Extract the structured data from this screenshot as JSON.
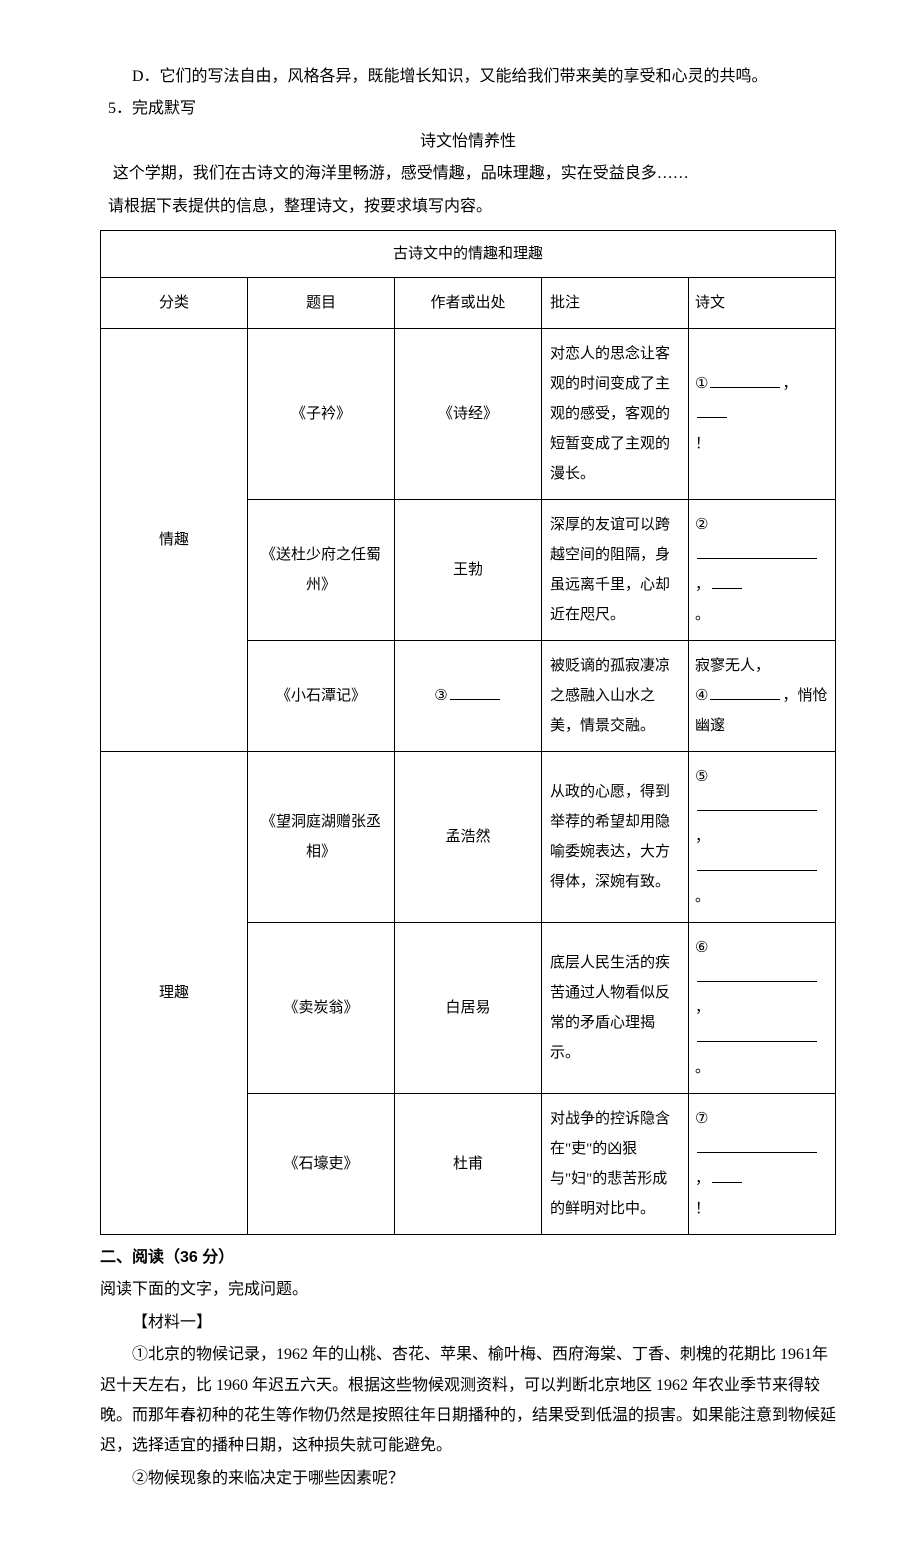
{
  "option_d": "D．它们的写法自由，风格各异，既能增长知识，又能给我们带来美的享受和心灵的共鸣。",
  "q5": "5．完成默写",
  "poem_title": "诗文怡情养性",
  "intro1": "这个学期，我们在古诗文的海洋里畅游，感受情趣，品味理趣，实在受益良多……",
  "intro2": "请根据下表提供的信息，整理诗文，按要求填写内容。",
  "table": {
    "caption": "古诗文中的情趣和理趣",
    "header": {
      "cat": "分类",
      "title": "题目",
      "author": "作者或出处",
      "note": "批注",
      "poem": "诗文"
    },
    "cat1": "情趣",
    "cat2": "理趣",
    "rows": [
      {
        "title": "《子衿》",
        "author": "《诗经》",
        "note": "对恋人的思念让客观的时间变成了主观的感受，客观的短暂变成了主观的漫长。",
        "num": "①",
        "tail": "！"
      },
      {
        "title": "《送杜少府之任蜀州》",
        "author": "王勃",
        "note": "深厚的友谊可以跨越空间的阻隔，身虽远离千里，心却近在咫尺。",
        "num": "②",
        "tail": "。"
      },
      {
        "title": "《小石潭记》",
        "author_num": "③",
        "note": "被贬谪的孤寂凄凉之感融入山水之美，情景交融。",
        "pre": "寂寥无人，",
        "num": "④",
        "tail": "，悄怆幽邃"
      },
      {
        "title": "《望洞庭湖赠张丞相》",
        "author": "孟浩然",
        "note": "从政的心愿，得到举荐的希望却用隐喻委婉表达，大方得体，深婉有致。",
        "num": "⑤",
        "tail": "。"
      },
      {
        "title": "《卖炭翁》",
        "author": "白居易",
        "note": "底层人民生活的疾苦通过人物看似反常的矛盾心理揭示。",
        "num": "⑥",
        "tail": "。"
      },
      {
        "title": "《石壕吏》",
        "author": "杜甫",
        "note": "对战争的控诉隐含在\"吏\"的凶狠与\"妇\"的悲苦形成的鲜明对比中。",
        "num": "⑦",
        "tail": "！"
      }
    ]
  },
  "section2": "二、阅读（36 分）",
  "section2_intro": "阅读下面的文字，完成问题。",
  "material1": "【材料一】",
  "para1": "①北京的物候记录，1962 年的山桃、杏花、苹果、榆叶梅、西府海棠、丁香、刺槐的花期比 1961年迟十天左右，比 1960 年迟五六天。根据这些物候观测资料，可以判断北京地区 1962 年农业季节来得较晚。而那年春初种的花生等作物仍然是按照往年日期播种的，结果受到低温的损害。如果能注意到物候延迟，选择适宜的播种日期，这种损失就可能避免。",
  "para2": "②物候现象的来临决定于哪些因素呢？"
}
